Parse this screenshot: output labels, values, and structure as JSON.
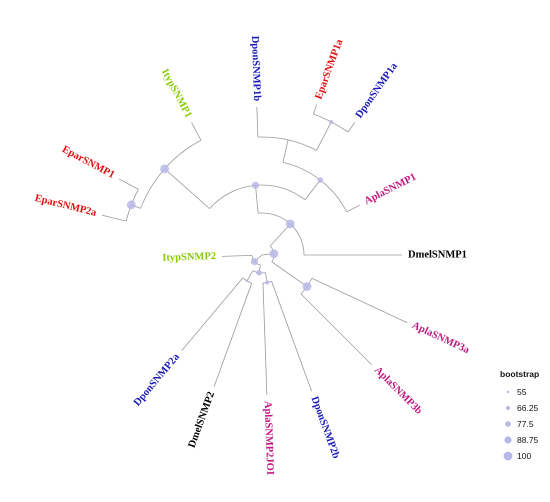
{
  "colors": {
    "dpon": "#1a1ab8",
    "epar": "#e01010",
    "ityp": "#88cc00",
    "apla": "#c01880",
    "dmel": "#000000",
    "branch": "#9a9a9a",
    "bootstrap_dot": "#b7b7e8"
  },
  "leaves": [
    {
      "id": "DponSNMP1b",
      "label": "DponSNMP1b",
      "group": "dpon"
    },
    {
      "id": "EparSNMP1a",
      "label": "EparSNMP1a",
      "group": "epar"
    },
    {
      "id": "DponSNMP1a",
      "label": "DponSNMP1a",
      "group": "dpon"
    },
    {
      "id": "AplaSNMP1",
      "label": "AplaSNMP1",
      "group": "apla"
    },
    {
      "id": "DmelSNMP1",
      "label": "DmelSNMP1",
      "group": "dmel"
    },
    {
      "id": "AplaSNMP3a",
      "label": "AplaSNMP3a",
      "group": "apla"
    },
    {
      "id": "AplaSNMP3b",
      "label": "AplaSNMP3b",
      "group": "apla"
    },
    {
      "id": "DponSNMP2b",
      "label": "DponSNMP2b",
      "group": "dpon"
    },
    {
      "id": "AplaSNMP2JOI",
      "label": "AplaSNMP2JOI",
      "group": "apla"
    },
    {
      "id": "DmelSNMP2",
      "label": "DmelSNMP2",
      "group": "dmel"
    },
    {
      "id": "DponSNMP2a",
      "label": "DponSNMP2a",
      "group": "dpon"
    },
    {
      "id": "ItypSNMP2",
      "label": "ItypSNMP2",
      "group": "ityp"
    },
    {
      "id": "EparSNMP2a",
      "label": "EparSNMP2a",
      "group": "epar"
    },
    {
      "id": "EparSNMP1",
      "label": "EparSNMP1",
      "group": "epar"
    },
    {
      "id": "ItypSNMP1",
      "label": "ItypSNMP1",
      "group": "ityp"
    }
  ],
  "bootstrap_nodes": [
    {
      "node": "snmp1-outer",
      "bootstrap": 100
    },
    {
      "node": "snmp1-a",
      "bootstrap": 100
    },
    {
      "node": "snmp1-b",
      "bootstrap": 88.75
    },
    {
      "node": "snmp1-c",
      "bootstrap": 77.5
    },
    {
      "node": "snmp1-d",
      "bootstrap": 66.25
    },
    {
      "node": "snmp1-e",
      "bootstrap": 100
    },
    {
      "node": "apla3",
      "bootstrap": 100
    },
    {
      "node": "snmp2-a",
      "bootstrap": 88.75
    },
    {
      "node": "snmp2-b",
      "bootstrap": 77.5
    },
    {
      "node": "snmp2-c",
      "bootstrap": 66.25
    },
    {
      "node": "snmp2-d",
      "bootstrap": 55
    },
    {
      "node": "epar-ityp",
      "bootstrap": 100
    }
  ],
  "legend": {
    "title": "bootstrap",
    "entries": [
      {
        "label": "55",
        "value": 55
      },
      {
        "label": "66.25",
        "value": 66.25
      },
      {
        "label": "77.5",
        "value": 77.5
      },
      {
        "label": "88.75",
        "value": 88.75
      },
      {
        "label": "100",
        "value": 100
      }
    ]
  }
}
